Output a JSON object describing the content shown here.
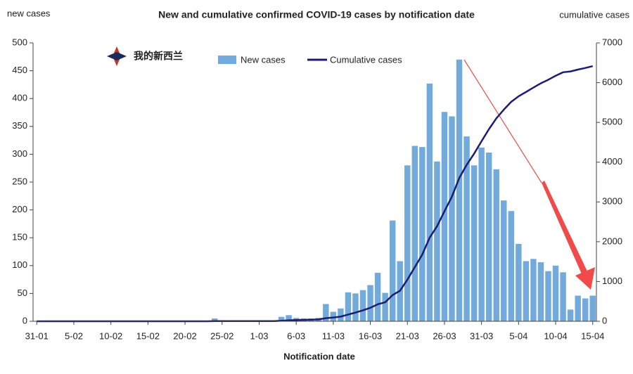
{
  "chart_data": {
    "type": "bar+line",
    "title": "New and cumulative confirmed COVID-19 cases by notification date",
    "y_label": "new cases",
    "y2_label": "cumulative cases",
    "x_label": "Notification date",
    "watermark": "我的新西兰",
    "categories": [
      "31-01",
      null,
      null,
      null,
      null,
      "5-02",
      null,
      null,
      null,
      null,
      "10-02",
      null,
      null,
      null,
      null,
      "15-02",
      null,
      null,
      null,
      null,
      "20-02",
      null,
      null,
      null,
      null,
      "25-02",
      null,
      null,
      null,
      null,
      "1-03",
      null,
      null,
      null,
      null,
      "6-03",
      null,
      null,
      null,
      null,
      "11-03",
      null,
      null,
      null,
      null,
      "16-03",
      null,
      null,
      null,
      null,
      "21-03",
      null,
      null,
      null,
      null,
      "26-03",
      null,
      null,
      null,
      null,
      "31-03",
      null,
      null,
      null,
      null,
      "5-04",
      null,
      null,
      null,
      null,
      "10-04",
      null,
      null,
      null,
      null,
      "15-04"
    ],
    "series": [
      {
        "name": "New cases",
        "type": "bar",
        "color": "#72aadc",
        "axis": "y",
        "values": [
          0,
          0,
          0,
          0,
          0,
          0,
          0,
          0,
          0,
          0,
          0,
          0,
          0,
          0,
          0,
          0,
          0,
          0,
          0,
          0,
          0,
          0,
          0,
          0,
          5,
          0,
          0,
          0,
          0,
          0,
          0,
          0,
          0,
          8,
          11,
          6,
          5,
          5,
          6,
          31,
          17,
          23,
          52,
          50,
          56,
          65,
          87,
          51,
          181,
          108,
          280,
          315,
          313,
          427,
          287,
          376,
          368,
          470,
          332,
          280,
          312,
          303,
          273,
          217,
          198,
          139,
          108,
          112,
          106,
          90,
          100,
          88,
          21,
          46,
          41,
          46
        ]
      },
      {
        "name": "Cumulative cases",
        "type": "line",
        "color": "#1c1c72",
        "axis": "y2",
        "values": [
          0,
          0,
          0,
          0,
          0,
          0,
          0,
          0,
          0,
          0,
          0,
          0,
          0,
          0,
          0,
          0,
          0,
          0,
          0,
          0,
          0,
          0,
          0,
          0,
          5,
          5,
          5,
          5,
          5,
          5,
          5,
          5,
          5,
          13,
          24,
          30,
          35,
          40,
          46,
          77,
          94,
          117,
          169,
          219,
          275,
          340,
          427,
          478,
          659,
          767,
          1047,
          1362,
          1675,
          2102,
          2389,
          2765,
          3133,
          3603,
          3935,
          4215,
          4527,
          4830,
          5103,
          5320,
          5518,
          5657,
          5765,
          5877,
          5983,
          6073,
          6173,
          6261,
          6282,
          6328,
          6369,
          6415
        ]
      }
    ],
    "ylim": [
      0,
      500
    ],
    "yticks": [
      0,
      50,
      100,
      150,
      200,
      250,
      300,
      350,
      400,
      450,
      500
    ],
    "y2lim": [
      0,
      7000
    ],
    "y2ticks": [
      0,
      1000,
      2000,
      3000,
      4000,
      5000,
      6000,
      7000
    ],
    "grid": false,
    "legend": "top"
  }
}
